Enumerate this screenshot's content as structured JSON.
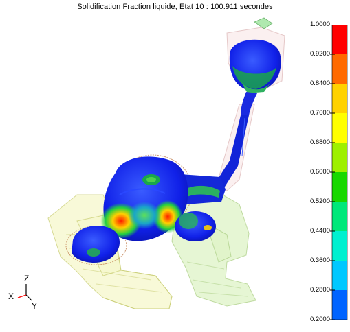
{
  "header": {
    "title": "Solidification Fraction liquide,  Etat 10 : 100.911 secondes"
  },
  "legend": {
    "ticks": [
      "1.0000",
      "0.9200",
      "0.8400",
      "0.7600",
      "0.6800",
      "0.6000",
      "0.5200",
      "0.4400",
      "0.3600",
      "0.2800",
      "0.2000"
    ],
    "colors": [
      "#ff0000",
      "#ff6a00",
      "#ffd200",
      "#ffff00",
      "#9ef000",
      "#18d800",
      "#00e87a",
      "#00f0d0",
      "#00c8ff",
      "#0064ff",
      "#0000ff"
    ]
  },
  "axes": {
    "z": "Z",
    "x": "X",
    "y": "Y"
  }
}
